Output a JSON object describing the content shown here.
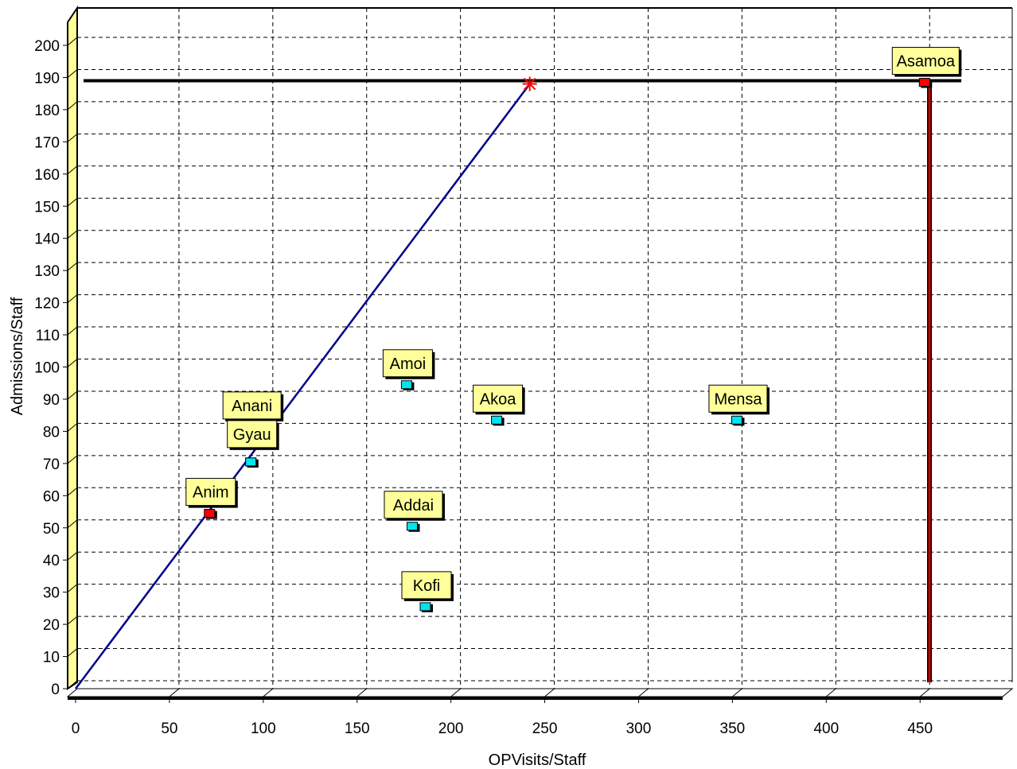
{
  "chart_data": {
    "type": "scatter",
    "xlabel": "OPVisits/Staff",
    "ylabel": "Admissions/Staff",
    "xlim": [
      0,
      460
    ],
    "ylim": [
      0,
      200
    ],
    "x_ticks": [
      0,
      50,
      100,
      150,
      200,
      250,
      300,
      350,
      400,
      450
    ],
    "y_ticks": [
      0,
      10,
      20,
      30,
      40,
      50,
      60,
      70,
      80,
      90,
      100,
      110,
      120,
      130,
      140,
      150,
      160,
      170,
      180,
      190,
      200
    ],
    "grid": true,
    "points": [
      {
        "label": "Asamoa",
        "x": 453,
        "y": 188,
        "color": "#ff0000"
      },
      {
        "label": "Amoi",
        "x": 177,
        "y": 94,
        "color": "#00e5ee"
      },
      {
        "label": "Akoa",
        "x": 225,
        "y": 83,
        "color": "#00e5ee"
      },
      {
        "label": "Mensa",
        "x": 353,
        "y": 83,
        "color": "#00e5ee"
      },
      {
        "label": "Anani",
        "x": 94,
        "y": 70,
        "color": "#00e5ee"
      },
      {
        "label": "Gyau",
        "x": 94,
        "y": 70,
        "color": "#00e5ee"
      },
      {
        "label": "Anim",
        "x": 72,
        "y": 54,
        "color": "#ff0000"
      },
      {
        "label": "Addai",
        "x": 180,
        "y": 50,
        "color": "#00e5ee"
      },
      {
        "label": "Kofi",
        "x": 187,
        "y": 25,
        "color": "#00e5ee"
      }
    ],
    "frontier_line": {
      "x": [
        0,
        242
      ],
      "y": [
        0,
        188
      ],
      "color": "#00008b"
    },
    "target_marker": {
      "x": 242,
      "y": 188,
      "color": "#ff0000"
    },
    "reference_hline": {
      "y": 189,
      "color": "#000000"
    },
    "reference_vline": {
      "x": 455,
      "color": "#cc0000"
    },
    "colors": {
      "wall": "#ffff99",
      "label_bg": "#ffff99",
      "grid": "#000000"
    }
  }
}
